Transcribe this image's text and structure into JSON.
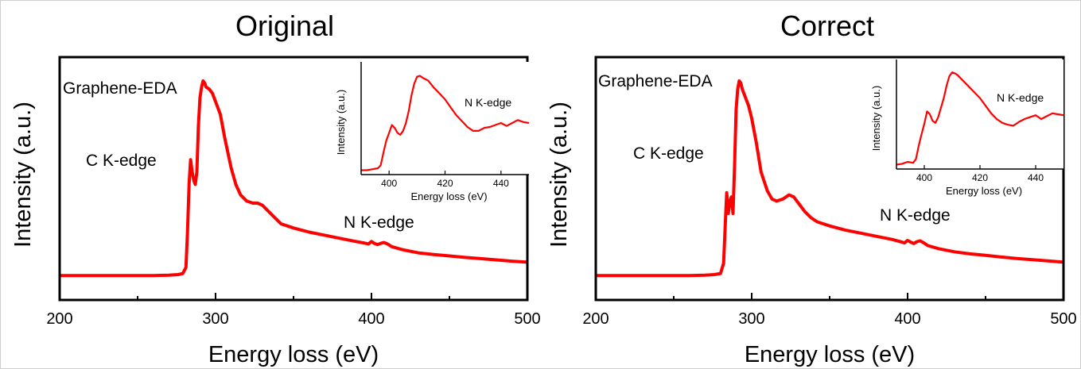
{
  "chart_data": [
    {
      "type": "line",
      "title": "Original",
      "xlabel": "Energy loss (eV)",
      "ylabel": "Intensity (a.u.)",
      "xlim": [
        200,
        500
      ],
      "ylim": [
        0,
        1
      ],
      "xticks": [
        200,
        300,
        400,
        500
      ],
      "xtick_labels": [
        "200",
        "300",
        "400",
        "500"
      ],
      "grid": false,
      "series": [
        {
          "color": "#ff0000",
          "x": [
            200,
            230,
            260,
            270,
            276,
            279,
            281,
            282,
            283,
            284,
            285,
            286,
            287,
            288,
            289,
            290,
            291,
            292,
            293,
            294,
            296,
            298,
            300,
            303,
            306,
            310,
            313,
            316,
            320,
            324,
            327,
            330,
            334,
            338,
            342,
            346,
            350,
            355,
            360,
            370,
            380,
            390,
            395,
            398,
            400,
            402,
            404,
            406,
            408,
            410,
            413,
            420,
            430,
            440,
            450,
            460,
            470,
            480,
            490,
            500
          ],
          "y": [
            0.06,
            0.06,
            0.06,
            0.062,
            0.065,
            0.07,
            0.1,
            0.27,
            0.5,
            0.62,
            0.56,
            0.52,
            0.5,
            0.56,
            0.78,
            0.92,
            0.97,
            1.0,
            0.99,
            0.97,
            0.96,
            0.94,
            0.9,
            0.84,
            0.72,
            0.58,
            0.5,
            0.45,
            0.42,
            0.41,
            0.41,
            0.4,
            0.37,
            0.34,
            0.31,
            0.3,
            0.29,
            0.28,
            0.27,
            0.255,
            0.24,
            0.225,
            0.218,
            0.213,
            0.225,
            0.215,
            0.21,
            0.216,
            0.22,
            0.214,
            0.2,
            0.185,
            0.17,
            0.162,
            0.155,
            0.148,
            0.142,
            0.136,
            0.13,
            0.125
          ]
        }
      ],
      "annotations": [
        "Graphene-EDA",
        "C K-edge",
        "N K-edge"
      ],
      "inset": {
        "xlabel": "Energy loss (eV)",
        "ylabel": "Intensity (a.u.)",
        "xlim": [
          390,
          450
        ],
        "ylim": [
          0,
          1
        ],
        "xticks": [
          400,
          420,
          440
        ],
        "xtick_labels": [
          "400",
          "420",
          "440"
        ],
        "annotation": "N K-edge",
        "x": [
          390,
          392,
          394,
          396,
          397,
          398,
          399,
          400,
          401,
          402,
          403,
          404,
          405,
          406,
          407,
          408,
          409,
          410,
          411,
          412,
          414,
          416,
          418,
          420,
          422,
          424,
          426,
          428,
          430,
          432,
          434,
          436,
          438,
          440,
          442,
          444,
          446,
          448,
          450
        ],
        "y": [
          0.02,
          0.02,
          0.03,
          0.04,
          0.07,
          0.2,
          0.32,
          0.4,
          0.48,
          0.45,
          0.4,
          0.38,
          0.42,
          0.5,
          0.62,
          0.78,
          0.9,
          0.97,
          0.98,
          0.96,
          0.93,
          0.86,
          0.8,
          0.74,
          0.66,
          0.58,
          0.52,
          0.46,
          0.42,
          0.42,
          0.45,
          0.46,
          0.48,
          0.5,
          0.47,
          0.5,
          0.53,
          0.51,
          0.5
        ]
      }
    },
    {
      "type": "line",
      "title": "Correct",
      "xlabel": "Energy loss (eV)",
      "ylabel": "Intensity (a.u.)",
      "xlim": [
        200,
        500
      ],
      "ylim": [
        0,
        1
      ],
      "xticks": [
        200,
        300,
        400,
        500
      ],
      "xtick_labels": [
        "200",
        "300",
        "400",
        "500"
      ],
      "grid": false,
      "series": [
        {
          "color": "#ff0000",
          "x": [
            200,
            230,
            260,
            270,
            276,
            280,
            282,
            283,
            284,
            285,
            286,
            287,
            288,
            289,
            290,
            291,
            292,
            293,
            294,
            296,
            298,
            300,
            303,
            306,
            310,
            313,
            316,
            320,
            324,
            327,
            330,
            334,
            338,
            342,
            346,
            350,
            355,
            360,
            370,
            380,
            390,
            395,
            398,
            400,
            402,
            404,
            406,
            408,
            410,
            413,
            420,
            430,
            440,
            450,
            460,
            470,
            480,
            490,
            500
          ],
          "y": [
            0.06,
            0.06,
            0.06,
            0.062,
            0.065,
            0.07,
            0.12,
            0.3,
            0.46,
            0.36,
            0.42,
            0.44,
            0.36,
            0.58,
            0.86,
            0.96,
            1.0,
            0.99,
            0.96,
            0.92,
            0.88,
            0.82,
            0.7,
            0.56,
            0.47,
            0.43,
            0.42,
            0.43,
            0.45,
            0.44,
            0.41,
            0.37,
            0.34,
            0.32,
            0.31,
            0.3,
            0.29,
            0.28,
            0.265,
            0.25,
            0.235,
            0.225,
            0.218,
            0.23,
            0.222,
            0.215,
            0.224,
            0.228,
            0.22,
            0.205,
            0.19,
            0.175,
            0.165,
            0.158,
            0.15,
            0.143,
            0.137,
            0.131,
            0.125
          ]
        }
      ],
      "annotations": [
        "Graphene-EDA",
        "C K-edge",
        "N K-edge"
      ],
      "inset": {
        "xlabel": "Energy loss (eV)",
        "ylabel": "Intensity (a.u.)",
        "xlim": [
          390,
          450
        ],
        "ylim": [
          0,
          1
        ],
        "xticks": [
          400,
          420,
          440
        ],
        "xtick_labels": [
          "400",
          "420",
          "440"
        ],
        "annotation": "N K-edge",
        "x": [
          390,
          392,
          394,
          396,
          397,
          398,
          399,
          400,
          401,
          402,
          403,
          404,
          405,
          406,
          407,
          408,
          409,
          410,
          411,
          412,
          414,
          416,
          418,
          420,
          422,
          424,
          426,
          428,
          430,
          432,
          434,
          436,
          438,
          440,
          442,
          444,
          446,
          448,
          450
        ],
        "y": [
          0.02,
          0.03,
          0.05,
          0.04,
          0.08,
          0.22,
          0.34,
          0.45,
          0.58,
          0.55,
          0.48,
          0.46,
          0.52,
          0.62,
          0.72,
          0.85,
          0.95,
          0.99,
          0.98,
          0.96,
          0.9,
          0.84,
          0.78,
          0.72,
          0.64,
          0.56,
          0.5,
          0.46,
          0.44,
          0.43,
          0.47,
          0.5,
          0.52,
          0.54,
          0.5,
          0.53,
          0.56,
          0.55,
          0.54
        ]
      }
    }
  ]
}
